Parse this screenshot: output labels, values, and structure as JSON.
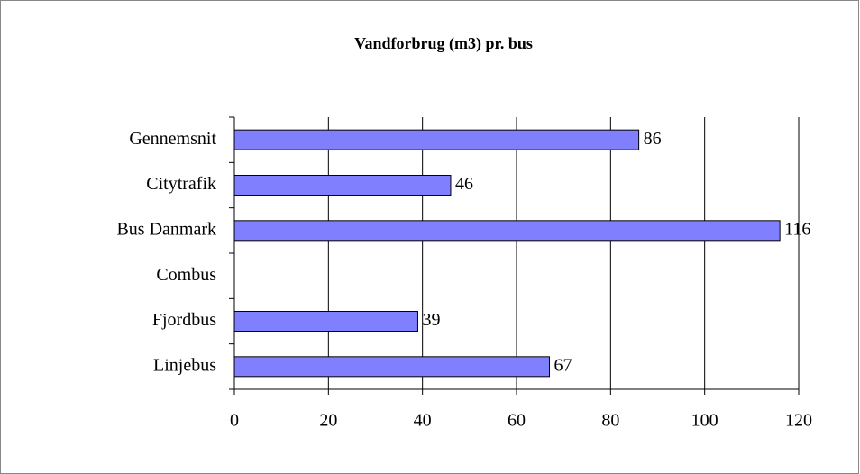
{
  "chart_data": {
    "type": "bar",
    "orientation": "horizontal",
    "title": "Vandforbrug (m3) pr. bus",
    "categories": [
      "Gennemsnit",
      "Citytrafik",
      "Bus Danmark",
      "Combus",
      "Fjordbus",
      "Linjebus"
    ],
    "values": [
      86,
      46,
      116,
      null,
      39,
      67
    ],
    "color": "#8080ff",
    "xlim": [
      0,
      120
    ],
    "xticks": [
      0,
      20,
      40,
      60,
      80,
      100,
      120
    ],
    "grid": true
  }
}
